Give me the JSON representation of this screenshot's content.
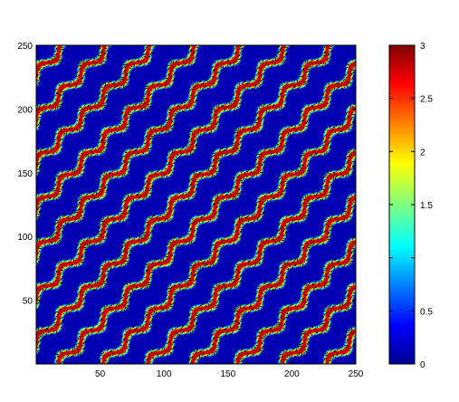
{
  "chart_data": {
    "type": "heatmap",
    "title": "",
    "xlabel": "",
    "ylabel": "",
    "xlim": [
      0,
      250
    ],
    "ylim": [
      0,
      250
    ],
    "x_ticks": [
      {
        "value": 50,
        "label": "50"
      },
      {
        "value": 100,
        "label": "100"
      },
      {
        "value": 150,
        "label": "150"
      },
      {
        "value": 200,
        "label": "200"
      },
      {
        "value": 250,
        "label": "250"
      }
    ],
    "y_ticks": [
      {
        "value": 50,
        "label": "50"
      },
      {
        "value": 100,
        "label": "100"
      },
      {
        "value": 150,
        "label": "150"
      },
      {
        "value": 200,
        "label": "200"
      },
      {
        "value": 250,
        "label": "250"
      }
    ],
    "colorbar": {
      "range": [
        0,
        3
      ],
      "colormap": "jet",
      "ticks": [
        {
          "value": 0,
          "label": "0"
        },
        {
          "value": 0.5,
          "label": "0.5"
        },
        {
          "value": 1,
          "label": ""
        },
        {
          "value": 1.5,
          "label": "1.5"
        },
        {
          "value": 2,
          "label": "2"
        },
        {
          "value": 2.5,
          "label": "2.5"
        },
        {
          "value": 3,
          "label": "3"
        }
      ]
    },
    "contour_levels": [
      0.5,
      1.0,
      1.5,
      2.0,
      2.5
    ],
    "field": {
      "description": "periodic diagonal stripes with wavy modulation",
      "stripe_period_along_diagonal": 35,
      "direction": "lower-left to upper-right"
    }
  }
}
